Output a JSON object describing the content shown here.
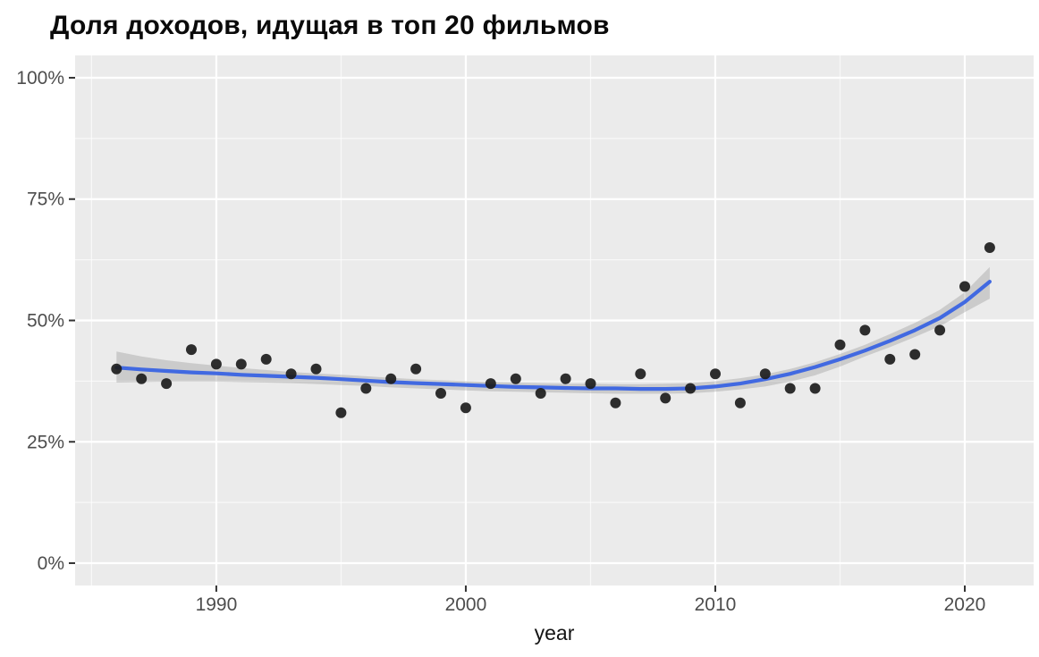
{
  "page_title": "Доля доходов, идущая в топ 20 фильмов",
  "chart_data": {
    "type": "scatter",
    "title": "Доля доходов, идущая в топ 20 фильмов",
    "xlabel": "year",
    "ylabel": "",
    "legend_position": "none",
    "grid": true,
    "x_range": [
      1984.34,
      2022.76
    ],
    "y_range": [
      -4.6,
      104.6
    ],
    "x_ticks": [
      1990,
      2000,
      2010,
      2020
    ],
    "x_tick_labels": [
      "1990",
      "2000",
      "2010",
      "2020"
    ],
    "x_minor_ticks": [
      1985,
      1995,
      2005,
      2015
    ],
    "y_ticks": [
      0,
      25,
      50,
      75,
      100
    ],
    "y_tick_labels": [
      "0%",
      "25%",
      "50%",
      "75%",
      "100%"
    ],
    "y_minor_ticks": [
      12.5,
      37.5,
      62.5,
      87.5
    ],
    "y_unit": "percent",
    "series": [
      {
        "name": "top20-share-points",
        "type": "scatter",
        "x": [
          1986,
          1987,
          1988,
          1989,
          1990,
          1991,
          1992,
          1993,
          1994,
          1995,
          1996,
          1997,
          1998,
          1999,
          2000,
          2001,
          2002,
          2003,
          2004,
          2005,
          2006,
          2007,
          2008,
          2009,
          2010,
          2011,
          2012,
          2013,
          2014,
          2015,
          2016,
          2017,
          2018,
          2019,
          2020,
          2021
        ],
        "y": [
          40,
          38,
          37,
          44,
          41,
          41,
          42,
          39,
          40,
          31,
          36,
          38,
          40,
          35,
          32,
          37,
          38,
          35,
          38,
          37,
          33,
          39,
          34,
          36,
          39,
          33,
          39,
          36,
          36,
          45,
          48,
          42,
          43,
          48,
          57,
          65
        ]
      },
      {
        "name": "loess-smooth-line",
        "type": "line",
        "x": [
          1986,
          1987,
          1988,
          1989,
          1990,
          1991,
          1992,
          1993,
          1994,
          1995,
          1996,
          1997,
          1998,
          1999,
          2000,
          2001,
          2002,
          2003,
          2004,
          2005,
          2006,
          2007,
          2008,
          2009,
          2010,
          2011,
          2012,
          2013,
          2014,
          2015,
          2016,
          2017,
          2018,
          2019,
          2020,
          2021
        ],
        "y": [
          40.3,
          39.9,
          39.6,
          39.3,
          39.1,
          38.8,
          38.6,
          38.4,
          38.2,
          37.9,
          37.6,
          37.3,
          37.1,
          36.9,
          36.7,
          36.5,
          36.3,
          36.2,
          36.1,
          36.0,
          36.0,
          35.9,
          35.9,
          36.0,
          36.4,
          37.0,
          37.9,
          39.0,
          40.4,
          42.0,
          43.8,
          45.8,
          48.0,
          50.5,
          53.8,
          58.0
        ]
      },
      {
        "name": "confidence-band",
        "type": "area",
        "x": [
          1986,
          1987,
          1988,
          1989,
          1990,
          1991,
          1992,
          1993,
          1994,
          1995,
          1996,
          1997,
          1998,
          1999,
          2000,
          2001,
          2002,
          2003,
          2004,
          2005,
          2006,
          2007,
          2008,
          2009,
          2010,
          2011,
          2012,
          2013,
          2014,
          2015,
          2016,
          2017,
          2018,
          2019,
          2020,
          2021
        ],
        "y_upper": [
          43.6,
          42.6,
          41.8,
          41.2,
          40.7,
          40.2,
          39.8,
          39.4,
          39.1,
          38.8,
          38.5,
          38.2,
          37.9,
          37.7,
          37.5,
          37.3,
          37.2,
          37.1,
          37.0,
          37.0,
          36.9,
          36.9,
          37.0,
          37.1,
          37.5,
          38.1,
          38.9,
          40.0,
          41.4,
          43.1,
          45.0,
          47.2,
          49.5,
          52.2,
          55.8,
          61.0
        ],
        "y_lower": [
          37.2,
          37.3,
          37.4,
          37.4,
          37.4,
          37.3,
          37.2,
          37.1,
          36.9,
          36.7,
          36.5,
          36.2,
          36.0,
          35.8,
          35.6,
          35.4,
          35.3,
          35.2,
          35.1,
          35.0,
          34.9,
          34.9,
          34.9,
          35.0,
          35.3,
          35.8,
          36.4,
          37.4,
          38.7,
          40.5,
          42.6,
          44.5,
          46.6,
          48.8,
          51.7,
          54.5
        ]
      }
    ],
    "colors": {
      "panel_bg": "#EBEBEB",
      "grid": "#FFFFFF",
      "point": "#1C1C1C",
      "smooth_line": "#4169E1",
      "ribbon": "#8A8A8A",
      "axis_text": "#4D4D4D",
      "tick_mark": "#333333",
      "title": "#0A0A0A",
      "axis_title": "#141414"
    }
  }
}
